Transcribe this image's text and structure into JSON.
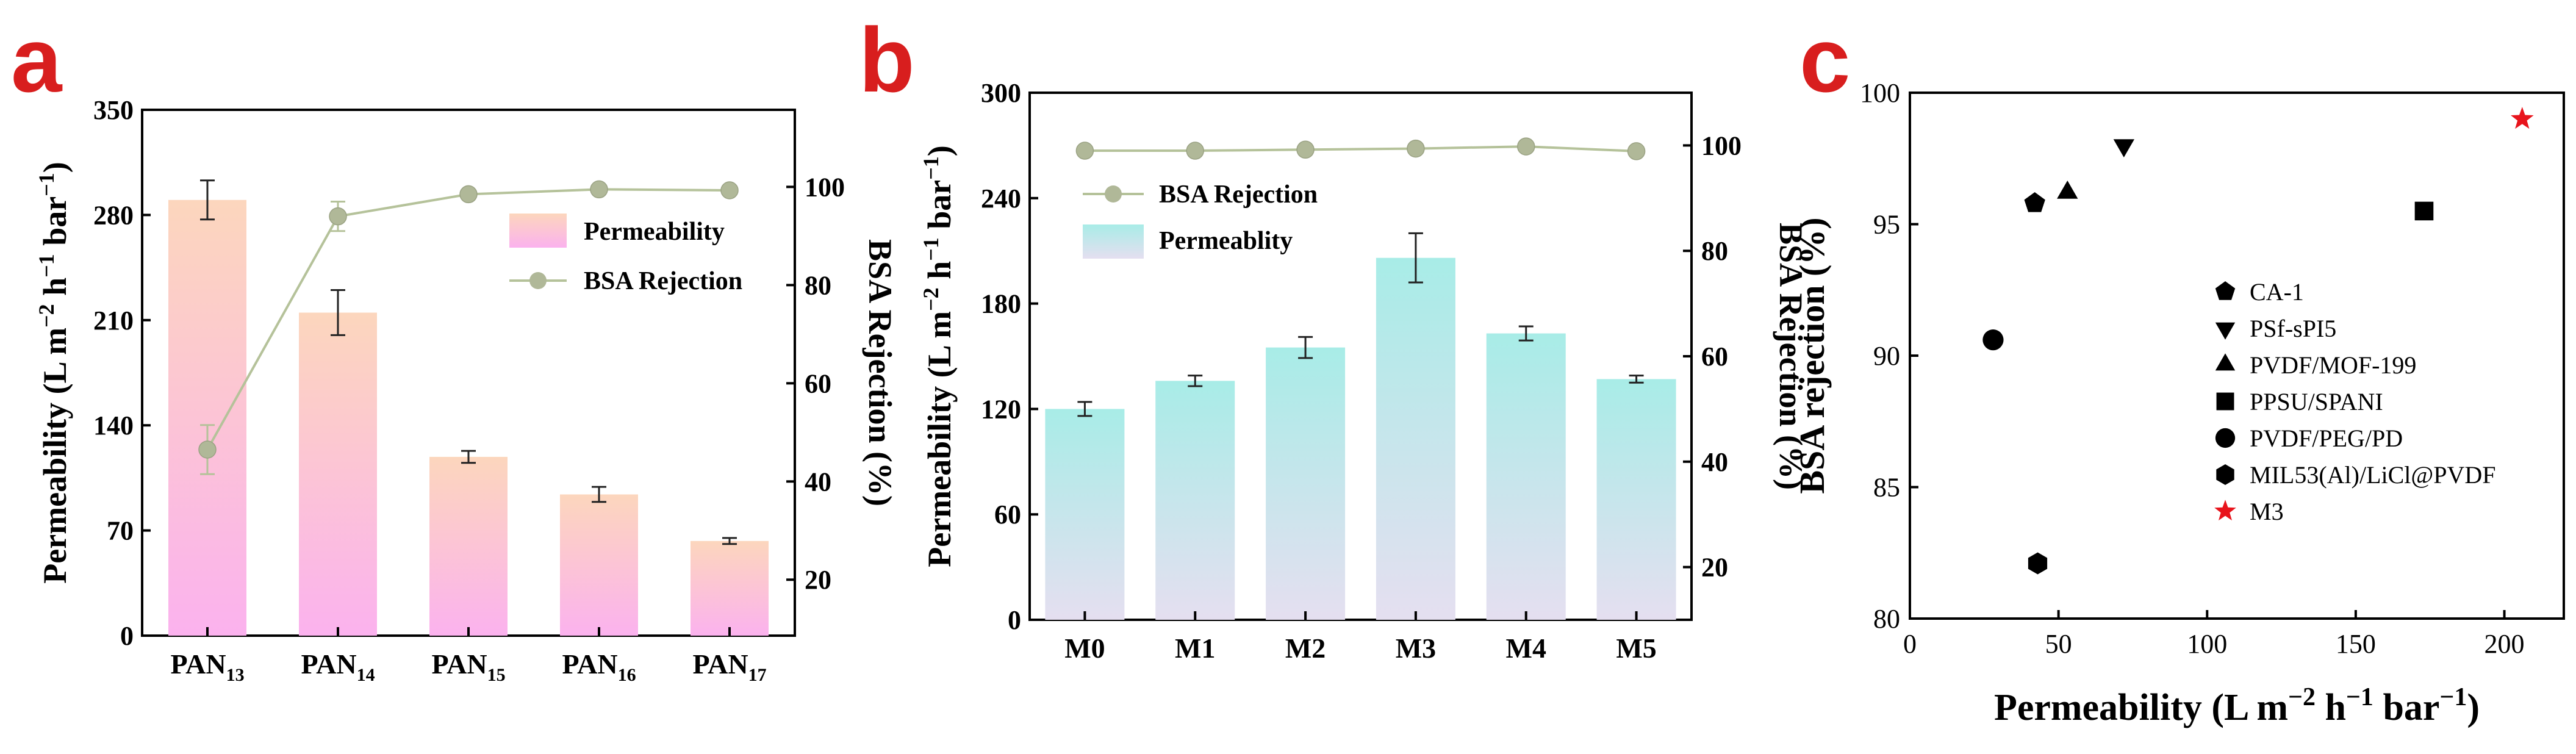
{
  "colors": {
    "panel_letter": "#d81e1e",
    "axis": "#000000",
    "line_a": "#b5c29a",
    "marker": "#b0b898",
    "bar_a_top": "#fcd6bd",
    "bar_a_bottom": "#fbb2ee",
    "bar_b_top": "#a8ece7",
    "bar_b_bottom": "#e5dff0",
    "scatter": "#000000",
    "star": "#e8141c"
  },
  "chart_data": [
    {
      "id": "a",
      "panel_label": "a",
      "type": "bar",
      "categories": [
        {
          "base": "PAN",
          "sub": "13"
        },
        {
          "base": "PAN",
          "sub": "14"
        },
        {
          "base": "PAN",
          "sub": "15"
        },
        {
          "base": "PAN",
          "sub": "16"
        },
        {
          "base": "PAN",
          "sub": "17"
        }
      ],
      "bar_series": {
        "name": "Permeability",
        "values": [
          290,
          215,
          119,
          94,
          63
        ],
        "errors": [
          13,
          15,
          4,
          5,
          2
        ]
      },
      "line_series": {
        "name": "BSA Rejection",
        "values": [
          46.5,
          94,
          98.5,
          99.5,
          99.3
        ],
        "errors": [
          5,
          3,
          0,
          0,
          0
        ]
      },
      "ylabel_left": {
        "main": "Permeability (L m",
        "sup1": "−2",
        "mid1": " h",
        "sup2": "−1",
        "mid2": " bar",
        "sup3": "−1",
        "end": ")"
      },
      "ylabel_right": "BSA Rejection (%)",
      "ylim_left": [
        0,
        350
      ],
      "yticks_left": [
        0,
        70,
        140,
        210,
        280,
        350
      ],
      "ylim_right": [
        8.6,
        115.7
      ],
      "yticks_right": [
        20,
        40,
        60,
        80,
        100
      ],
      "legend": [
        "Permeability",
        "BSA Rejection"
      ],
      "legend_position": "right"
    },
    {
      "id": "b",
      "panel_label": "b",
      "type": "bar",
      "categories": [
        "M0",
        "M1",
        "M2",
        "M3",
        "M4",
        "M5"
      ],
      "bar_series": {
        "name": "Permeablity",
        "values": [
          120,
          136,
          155,
          206,
          163,
          137
        ],
        "errors": [
          4,
          3,
          6,
          14,
          4,
          2
        ]
      },
      "line_series": {
        "name": "BSA Rejection",
        "values": [
          99,
          99,
          99.2,
          99.4,
          99.8,
          98.9
        ]
      },
      "ylabel_left": {
        "main": "Permeability (L m",
        "sup1": "−2",
        "mid1": " h",
        "sup2": "−1",
        "mid2": " bar",
        "sup3": "−1",
        "end": ")"
      },
      "ylabel_right": "BSA Rejection (%)",
      "ylim_left": [
        0,
        300
      ],
      "yticks_left": [
        0,
        60,
        120,
        180,
        240,
        300
      ],
      "ylim_right": [
        10,
        110
      ],
      "yticks_right": [
        20,
        40,
        60,
        80,
        100
      ],
      "legend": [
        "BSA Rejection",
        "Permeablity"
      ],
      "legend_position": "top-left"
    },
    {
      "id": "c",
      "panel_label": "c",
      "type": "scatter",
      "points": [
        {
          "name": "CA-1",
          "x": 42,
          "y": 95.8,
          "marker": "pentagon"
        },
        {
          "name": "PSf-sPI5",
          "x": 72,
          "y": 98,
          "marker": "triangle-down"
        },
        {
          "name": "PVDF/MOF-199",
          "x": 53,
          "y": 96.2,
          "marker": "triangle-up"
        },
        {
          "name": "PPSU/SPANI",
          "x": 173,
          "y": 95.5,
          "marker": "square"
        },
        {
          "name": "PVDF/PEG/PD",
          "x": 28,
          "y": 90.6,
          "marker": "circle"
        },
        {
          "name": "MIL53(Al)/LiCl@PVDF",
          "x": 43,
          "y": 82.1,
          "marker": "hexagon"
        },
        {
          "name": "M3",
          "x": 206,
          "y": 99,
          "marker": "star"
        }
      ],
      "xlabel": {
        "main": "Permeability (L m",
        "sup1": "−2",
        "mid1": " h",
        "sup2": "−1",
        "mid2": " bar",
        "sup3": "−1",
        "end": ")"
      },
      "ylabel": "BSA rejection (%)",
      "xlim": [
        0,
        220
      ],
      "xticks": [
        0,
        50,
        100,
        150,
        200
      ],
      "ylim": [
        80,
        100
      ],
      "yticks": [
        80,
        85,
        90,
        95,
        100
      ],
      "legend_position": "center-right"
    }
  ]
}
